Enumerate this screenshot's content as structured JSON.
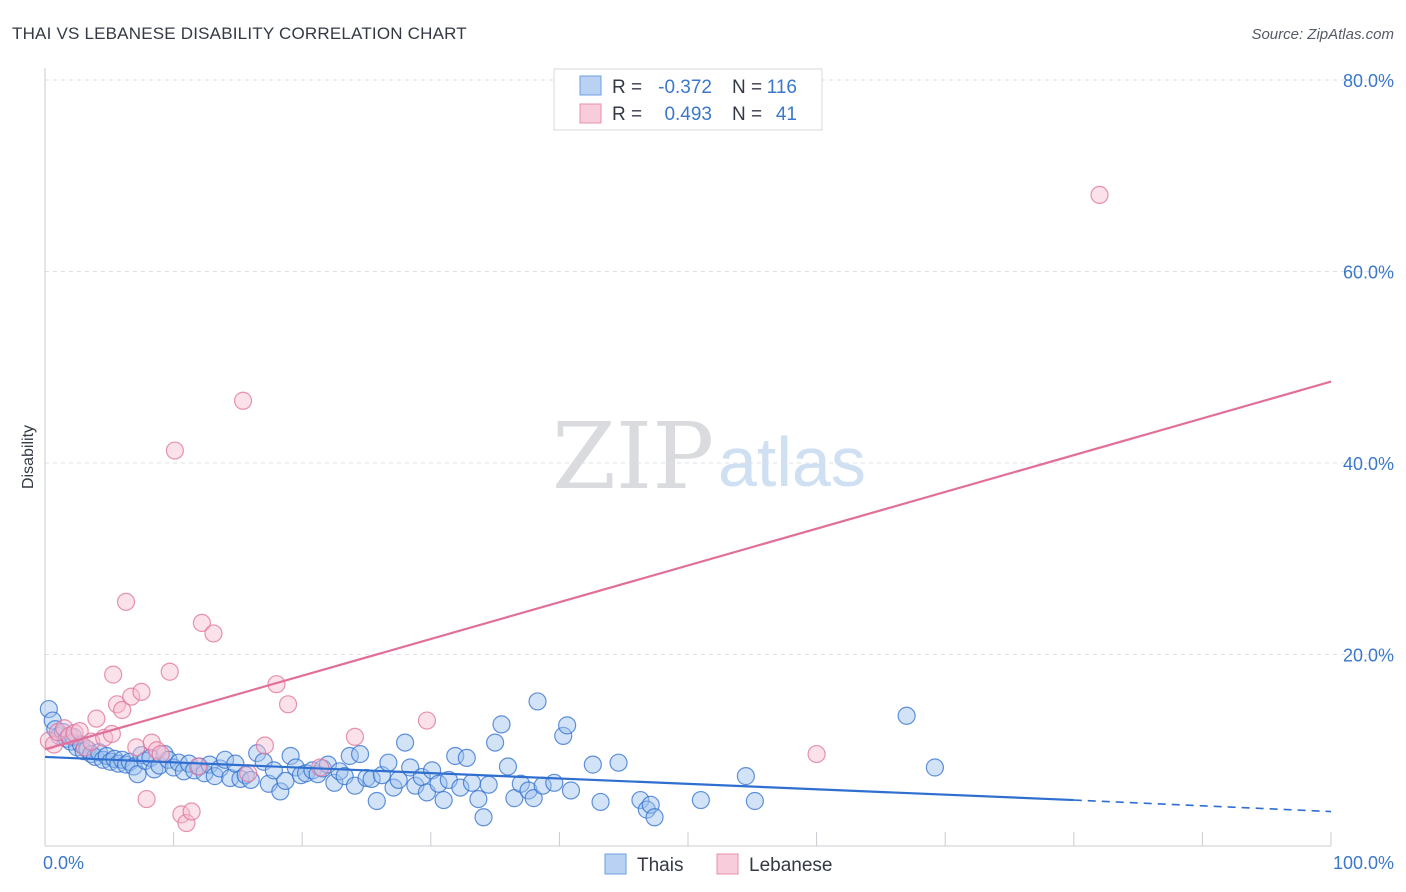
{
  "chart_data": {
    "type": "scatter",
    "title": "THAI VS LEBANESE DISABILITY CORRELATION CHART",
    "source": "Source: ZipAtlas.com",
    "ylabel": "Disability",
    "xlim": [
      0,
      100
    ],
    "ylim": [
      0,
      80
    ],
    "yticks": [
      20,
      40,
      60,
      80
    ],
    "ytick_labels": [
      "20.0%",
      "40.0%",
      "60.0%",
      "80.0%"
    ],
    "xtick_labels": [
      "0.0%",
      "100.0%"
    ],
    "legend": {
      "rows": [
        {
          "r_label": "R =",
          "r_value": "-0.372",
          "n_label": "N =",
          "n_value": "116"
        },
        {
          "r_label": "R =",
          "r_value": "0.493",
          "n_label": "N =",
          "n_value": "41"
        }
      ]
    },
    "watermark": {
      "zip": "ZIP",
      "atlas": "atlas"
    },
    "colors": {
      "thais": "#2f6fcf",
      "thais_fill": "#9dc0ee",
      "lebanese": "#e0709a",
      "lebanese_fill": "#f6bcd0",
      "axis_text": "#3b78c9"
    },
    "series": [
      {
        "name": "Thais",
        "trend": {
          "x": [
            0,
            80
          ],
          "y": [
            9.3,
            4.8
          ],
          "dash_to": [
            100,
            3.6
          ]
        },
        "points": [
          [
            0.3,
            14.3
          ],
          [
            0.6,
            13.1
          ],
          [
            0.8,
            12.2
          ],
          [
            1.1,
            11.5
          ],
          [
            1.4,
            11.9
          ],
          [
            1.7,
            11.2
          ],
          [
            2.0,
            10.9
          ],
          [
            2.2,
            11.4
          ],
          [
            2.5,
            10.3
          ],
          [
            2.8,
            10.6
          ],
          [
            3.0,
            9.9
          ],
          [
            3.3,
            10.1
          ],
          [
            3.6,
            9.6
          ],
          [
            3.9,
            9.3
          ],
          [
            4.2,
            9.8
          ],
          [
            4.5,
            9.0
          ],
          [
            4.8,
            9.4
          ],
          [
            5.1,
            8.8
          ],
          [
            5.4,
            9.1
          ],
          [
            5.7,
            8.6
          ],
          [
            6.0,
            9.0
          ],
          [
            6.3,
            8.5
          ],
          [
            6.6,
            8.8
          ],
          [
            6.9,
            8.3
          ],
          [
            7.2,
            7.5
          ],
          [
            7.5,
            9.5
          ],
          [
            7.8,
            8.9
          ],
          [
            8.2,
            9.2
          ],
          [
            8.5,
            8.0
          ],
          [
            8.9,
            8.4
          ],
          [
            9.3,
            9.6
          ],
          [
            9.6,
            9.0
          ],
          [
            10.0,
            8.2
          ],
          [
            10.4,
            8.7
          ],
          [
            10.8,
            7.8
          ],
          [
            11.2,
            8.6
          ],
          [
            11.6,
            7.9
          ],
          [
            12.0,
            8.3
          ],
          [
            12.4,
            7.6
          ],
          [
            12.8,
            8.5
          ],
          [
            13.2,
            7.3
          ],
          [
            13.6,
            8.1
          ],
          [
            14.0,
            9.0
          ],
          [
            14.4,
            7.1
          ],
          [
            14.8,
            8.6
          ],
          [
            15.2,
            7.0
          ],
          [
            15.6,
            7.4
          ],
          [
            16.0,
            6.9
          ],
          [
            16.5,
            9.7
          ],
          [
            17.0,
            8.8
          ],
          [
            17.4,
            6.5
          ],
          [
            17.8,
            7.9
          ],
          [
            18.3,
            5.7
          ],
          [
            18.7,
            6.8
          ],
          [
            19.1,
            9.4
          ],
          [
            19.5,
            8.2
          ],
          [
            19.9,
            7.4
          ],
          [
            20.3,
            7.6
          ],
          [
            20.8,
            7.9
          ],
          [
            21.2,
            7.5
          ],
          [
            21.6,
            8.1
          ],
          [
            22.0,
            8.5
          ],
          [
            22.5,
            6.6
          ],
          [
            22.9,
            7.8
          ],
          [
            23.3,
            7.3
          ],
          [
            23.7,
            9.4
          ],
          [
            24.1,
            6.3
          ],
          [
            24.5,
            9.6
          ],
          [
            25.0,
            7.1
          ],
          [
            25.4,
            7.0
          ],
          [
            25.8,
            4.7
          ],
          [
            26.2,
            7.4
          ],
          [
            26.7,
            8.7
          ],
          [
            27.1,
            6.1
          ],
          [
            27.5,
            6.9
          ],
          [
            28.0,
            10.8
          ],
          [
            28.4,
            8.2
          ],
          [
            28.8,
            6.3
          ],
          [
            29.3,
            7.2
          ],
          [
            29.7,
            5.6
          ],
          [
            30.1,
            7.9
          ],
          [
            30.6,
            6.5
          ],
          [
            31.0,
            4.8
          ],
          [
            31.4,
            6.9
          ],
          [
            31.9,
            9.4
          ],
          [
            32.3,
            6.1
          ],
          [
            32.8,
            9.2
          ],
          [
            33.2,
            6.6
          ],
          [
            33.7,
            4.9
          ],
          [
            34.1,
            3.0
          ],
          [
            34.5,
            6.4
          ],
          [
            35.0,
            10.8
          ],
          [
            35.5,
            12.7
          ],
          [
            36.0,
            8.3
          ],
          [
            36.5,
            5.0
          ],
          [
            37.0,
            6.5
          ],
          [
            37.6,
            5.8
          ],
          [
            38.0,
            5.0
          ],
          [
            38.3,
            15.1
          ],
          [
            38.7,
            6.3
          ],
          [
            39.6,
            6.6
          ],
          [
            40.3,
            11.5
          ],
          [
            40.6,
            12.6
          ],
          [
            40.9,
            5.8
          ],
          [
            42.6,
            8.5
          ],
          [
            43.2,
            4.6
          ],
          [
            44.6,
            8.7
          ],
          [
            46.3,
            4.8
          ],
          [
            46.8,
            3.8
          ],
          [
            47.1,
            4.3
          ],
          [
            47.4,
            3.0
          ],
          [
            51.0,
            4.8
          ],
          [
            54.5,
            7.3
          ],
          [
            55.2,
            4.7
          ],
          [
            67.0,
            13.6
          ],
          [
            69.2,
            8.2
          ]
        ]
      },
      {
        "name": "Lebanese",
        "trend": {
          "x": [
            0,
            100
          ],
          "y": [
            10.1,
            48.5
          ]
        },
        "points": [
          [
            0.3,
            11.0
          ],
          [
            0.7,
            10.6
          ],
          [
            1.0,
            11.9
          ],
          [
            1.5,
            12.3
          ],
          [
            1.9,
            11.5
          ],
          [
            2.3,
            11.8
          ],
          [
            2.7,
            12.0
          ],
          [
            3.1,
            10.3
          ],
          [
            3.6,
            10.9
          ],
          [
            4.0,
            13.3
          ],
          [
            4.6,
            11.3
          ],
          [
            5.2,
            11.7
          ],
          [
            5.3,
            17.9
          ],
          [
            5.6,
            14.8
          ],
          [
            6.0,
            14.2
          ],
          [
            6.3,
            25.5
          ],
          [
            6.7,
            15.6
          ],
          [
            7.1,
            10.3
          ],
          [
            7.5,
            16.1
          ],
          [
            7.9,
            4.9
          ],
          [
            8.3,
            10.8
          ],
          [
            8.7,
            10.0
          ],
          [
            9.0,
            9.6
          ],
          [
            9.7,
            18.2
          ],
          [
            10.1,
            41.3
          ],
          [
            10.6,
            3.3
          ],
          [
            11.0,
            2.4
          ],
          [
            11.4,
            3.6
          ],
          [
            11.9,
            8.3
          ],
          [
            12.2,
            23.3
          ],
          [
            13.1,
            22.2
          ],
          [
            15.4,
            46.5
          ],
          [
            15.8,
            7.6
          ],
          [
            17.1,
            10.5
          ],
          [
            18.0,
            16.9
          ],
          [
            18.9,
            14.8
          ],
          [
            21.4,
            8.2
          ],
          [
            24.1,
            11.4
          ],
          [
            29.7,
            13.1
          ],
          [
            60.0,
            9.6
          ],
          [
            82.0,
            68.0
          ]
        ]
      }
    ]
  }
}
